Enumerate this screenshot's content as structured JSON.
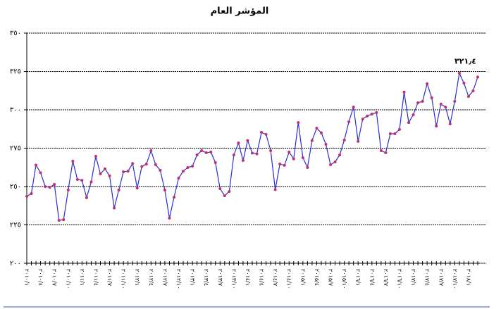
{
  "chart_data": {
    "type": "line",
    "title": "المؤشر العام",
    "annotation": "٣٢١٫٤",
    "categories": [
      "٢٠١٠/١",
      null,
      null,
      "٢٠١٠/٤",
      null,
      null,
      "٢٠١٠/٧",
      null,
      null,
      "٢٠١٠/١٠",
      null,
      null,
      "٢٠١١/١",
      null,
      null,
      "٢٠١١/٤",
      null,
      null,
      "٢٠١١/٧",
      null,
      null,
      "٢٠١١/١٠",
      null,
      null,
      "٢٠١٢/١",
      null,
      null,
      "٢٠١٢/٤",
      null,
      null,
      "٢٠١٢/٧",
      null,
      null,
      "٢٠١٢/١٠",
      null,
      null,
      "٢٠١٣/١",
      null,
      null,
      "٢٠١٣/٤",
      null,
      null,
      "٢٠١٣/٧",
      null,
      null,
      "٢٠١٣/١٠",
      null,
      null,
      "٢٠١٤/١",
      null,
      null,
      "٢٠١٤/٤",
      null,
      null,
      "٢٠١٤/٧",
      null,
      null,
      "٢٠١٤/١٠",
      null,
      null,
      "٢٠١٥/١",
      null,
      null,
      "٢٠١٥/٤",
      null,
      null,
      "٢٠١٥/٧",
      null,
      null,
      "٢٠١٥/١٠",
      null,
      null,
      "٢٠١٦/١",
      null,
      null,
      "٢٠١٦/٤",
      null,
      null,
      "٢٠١٦/٧",
      null,
      null,
      "٢٠١٦/١٠",
      null,
      null,
      "٢٠١٧/١",
      null,
      null,
      "٢٠١٧/٤",
      null,
      null,
      "٢٠١٧/٧",
      null,
      null,
      "٢٠١٧/١٠",
      null,
      null,
      "٢٠١٨/١",
      null,
      null
    ],
    "series": [
      {
        "color": "#2b2bdd",
        "marker_color": "#c0306a",
        "values": [
          243.6,
          245.4,
          264,
          259,
          250,
          249.5,
          251.4,
          228,
          228.4,
          247.7,
          266.5,
          254.6,
          254,
          242.7,
          253,
          269.7,
          258.3,
          261.5,
          257,
          236,
          247.7,
          259.6,
          260,
          265,
          249,
          263,
          264.6,
          273.4,
          264.2,
          260.6,
          247.7,
          229.4,
          243,
          255.5,
          260,
          262.4,
          263.3,
          270.6,
          273.4,
          272,
          272.5,
          265.6,
          248.6,
          244,
          246.8,
          270.6,
          278.4,
          267,
          280,
          271.8,
          271.3,
          285.3,
          284,
          273.4,
          248,
          264.7,
          263.8,
          272.5,
          268,
          291.7,
          268.8,
          262.4,
          280,
          288,
          285,
          277.5,
          264.2,
          266,
          270.6,
          280.3,
          292.2,
          301.8,
          279.4,
          294,
          296,
          297.2,
          298.2,
          273.4,
          272,
          284.4,
          284.4,
          287.2,
          311.5,
          291.7,
          296.8,
          304.6,
          305.5,
          317,
          307.8,
          289.4,
          303.7,
          301.8,
          290.8,
          305.5,
          323.9,
          317.4,
          308.7,
          312.4,
          321.4
        ]
      }
    ],
    "ylim": [
      200,
      350
    ],
    "yticks": [
      {
        "value": 200,
        "label": "٢٠٠"
      },
      {
        "value": 225,
        "label": "٢٢٥"
      },
      {
        "value": 250,
        "label": "٢٥٠"
      },
      {
        "value": 275,
        "label": "٢٧٥"
      },
      {
        "value": 300,
        "label": "٣٠٠"
      },
      {
        "value": 325,
        "label": "٣٢٥"
      },
      {
        "value": 350,
        "label": "٣٥٠"
      }
    ],
    "grid": true
  }
}
